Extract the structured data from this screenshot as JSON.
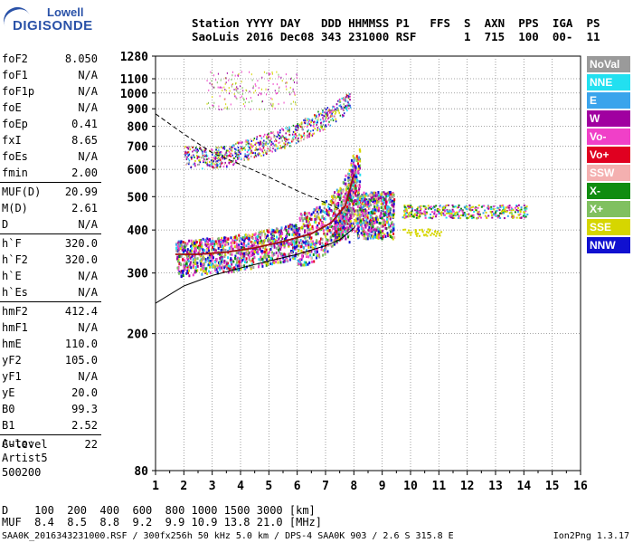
{
  "logo": {
    "line1": "Lowell",
    "line2": "DIGISONDE"
  },
  "header": {
    "line1": "Station YYYY DAY   DDD HHMMSS P1   FFS  S  AXN  PPS  IGA  PS",
    "line2": "SaoLuis 2016 Dec08 343 231000 RSF       1  715  100  00-  11"
  },
  "params": {
    "group1": [
      {
        "name": "foF2",
        "value": "8.050"
      },
      {
        "name": "foF1",
        "value": "N/A"
      },
      {
        "name": "foF1p",
        "value": "N/A"
      },
      {
        "name": "foE",
        "value": "N/A"
      },
      {
        "name": "foEp",
        "value": "0.41"
      },
      {
        "name": "fxI",
        "value": "8.65"
      },
      {
        "name": "foEs",
        "value": "N/A"
      },
      {
        "name": "fmin",
        "value": "2.00"
      }
    ],
    "group2": [
      {
        "name": "MUF(D)",
        "value": "20.99"
      },
      {
        "name": "M(D)",
        "value": "2.61"
      },
      {
        "name": "D",
        "value": "N/A"
      }
    ],
    "group3": [
      {
        "name": "h`F",
        "value": "320.0"
      },
      {
        "name": "h`F2",
        "value": "320.0"
      },
      {
        "name": "h`E",
        "value": "N/A"
      },
      {
        "name": "h`Es",
        "value": "N/A"
      }
    ],
    "group4": [
      {
        "name": "hmF2",
        "value": "412.4"
      },
      {
        "name": "hmF1",
        "value": "N/A"
      },
      {
        "name": "hmE",
        "value": "110.0"
      },
      {
        "name": "yF2",
        "value": "105.0"
      },
      {
        "name": "yF1",
        "value": "N/A"
      },
      {
        "name": "yE",
        "value": "20.0"
      },
      {
        "name": "B0",
        "value": "99.3"
      },
      {
        "name": "B1",
        "value": "2.52"
      }
    ],
    "group5": [
      {
        "name": "C-level",
        "value": "22"
      }
    ]
  },
  "auto": {
    "line1": "Auto:",
    "line2": "Artist5",
    "line3": "500200"
  },
  "legend": [
    {
      "label": "NoVal",
      "color": "#9a9a9a"
    },
    {
      "label": "NNE",
      "color": "#22e0f0"
    },
    {
      "label": "E",
      "color": "#3aa4ec"
    },
    {
      "label": "W",
      "color": "#a000a0"
    },
    {
      "label": "Vo-",
      "color": "#f040c8"
    },
    {
      "label": "Vo+",
      "color": "#e00020"
    },
    {
      "label": "SSW",
      "color": "#f4b0b0"
    },
    {
      "label": "X-",
      "color": "#108c10"
    },
    {
      "label": "X+",
      "color": "#80c060"
    },
    {
      "label": "SSE",
      "color": "#d6d600"
    },
    {
      "label": "NNW",
      "color": "#1010d0"
    }
  ],
  "footer": {
    "line1": "D    100  200  400  600  800 1000 1500 3000 [km]",
    "line2": "MUF  8.4  8.5  8.8  9.2  9.9 10.9 13.8 21.0 [MHz]"
  },
  "fileinfo": "SAA0K_2016343231000.RSF / 300fx256h 50 kHz 5.0 km / DPS-4 SAA0K 903 / 2.6 S 315.8 E",
  "version": "Ion2Png 1.3.17",
  "chart_data": {
    "type": "scatter",
    "title": "",
    "xlabel": "",
    "ylabel": "",
    "xlim": [
      1,
      16
    ],
    "ylim": [
      80,
      1280
    ],
    "y_scale": "log",
    "x_ticks": [
      "1",
      "2",
      "3",
      "4",
      "5",
      "6",
      "7",
      "8",
      "9",
      "10",
      "11",
      "12",
      "13",
      "14",
      "15",
      "16"
    ],
    "y_ticks": [
      "80",
      "200",
      "300",
      "400",
      "500",
      "600",
      "700",
      "800",
      "900",
      "1000",
      "1100",
      "1280"
    ],
    "grid": "on (dotted)",
    "echo_clusters": [
      {
        "name": "F-trace main",
        "x": [
          1.7,
          2.5,
          3.5,
          4.5,
          5.5,
          6.5,
          7.0,
          7.5,
          7.8,
          8.05
        ],
        "y": [
          330,
          335,
          340,
          350,
          365,
          385,
          410,
          450,
          510,
          600
        ]
      },
      {
        "name": "F-trace extended",
        "x": [
          8.1,
          8.5,
          9.0,
          9.2
        ],
        "y": [
          470,
          440,
          430,
          420
        ]
      },
      {
        "name": "Spread 10-14 MHz",
        "x": [
          10,
          10.5,
          11,
          12,
          13,
          14
        ],
        "y": [
          455,
          450,
          455,
          455,
          455,
          455
        ]
      },
      {
        "name": "Multihop upper",
        "x": [
          2,
          2.8,
          3.5,
          4.2,
          5,
          5.8,
          6.6,
          7.3,
          7.9
        ],
        "y": [
          660,
          650,
          660,
          690,
          720,
          760,
          820,
          880,
          960
        ]
      }
    ],
    "curves": [
      {
        "name": "X-ray upper boundary (dashed)",
        "style": "dashed",
        "x": [
          1,
          2,
          3,
          4,
          5,
          6,
          7,
          7.5
        ],
        "y": [
          870,
          760,
          670,
          620,
          570,
          520,
          480,
          460
        ]
      },
      {
        "name": "True height profile",
        "style": "solid",
        "x": [
          1,
          2,
          3,
          4,
          5,
          6,
          7,
          7.5,
          8,
          8.05
        ],
        "y": [
          245,
          275,
          295,
          310,
          325,
          340,
          360,
          375,
          405,
          412
        ]
      },
      {
        "name": "O-trace fit",
        "style": "solid-red",
        "x": [
          1.7,
          2.5,
          3.5,
          4.5,
          5.5,
          6.5,
          7.2,
          7.7,
          8.0
        ],
        "y": [
          340,
          340,
          345,
          355,
          370,
          390,
          420,
          470,
          580
        ]
      }
    ]
  }
}
